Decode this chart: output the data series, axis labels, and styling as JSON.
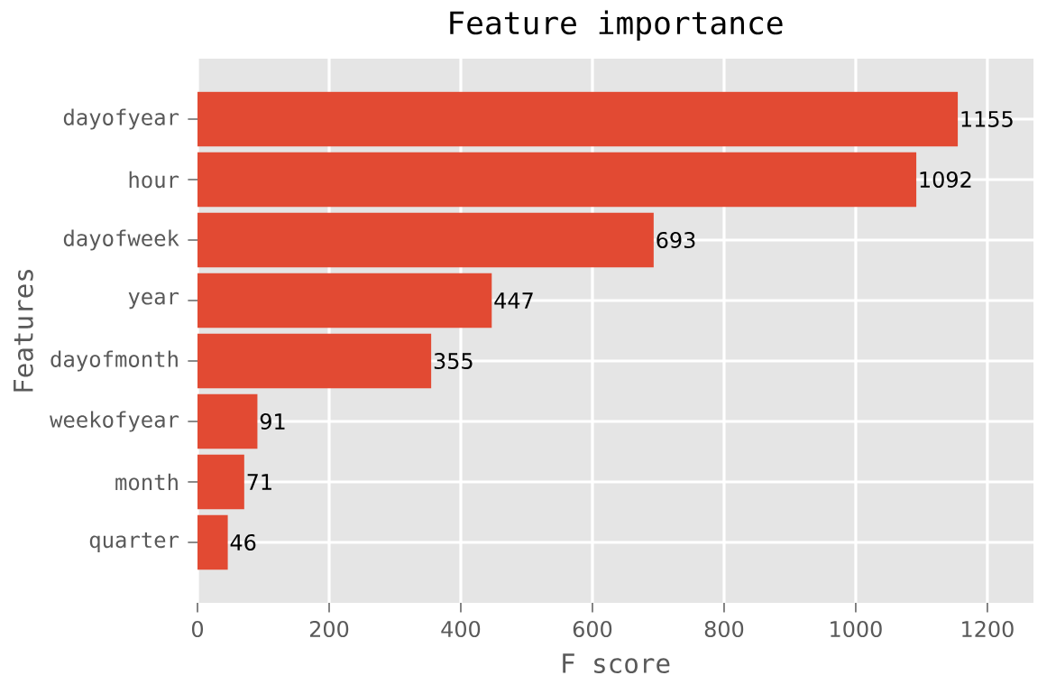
{
  "chart_data": {
    "type": "bar",
    "orientation": "horizontal",
    "title": "Feature importance",
    "xlabel": "F score",
    "ylabel": "Features",
    "categories": [
      "dayofyear",
      "hour",
      "dayofweek",
      "year",
      "dayofmonth",
      "weekofyear",
      "month",
      "quarter"
    ],
    "values": [
      1155,
      1092,
      693,
      447,
      355,
      91,
      71,
      46
    ],
    "color": "#e24a33",
    "data_labels": true,
    "grid": true,
    "xlim": [
      0,
      1270
    ],
    "xticks": [
      0,
      200,
      400,
      600,
      800,
      1000,
      1200
    ]
  }
}
